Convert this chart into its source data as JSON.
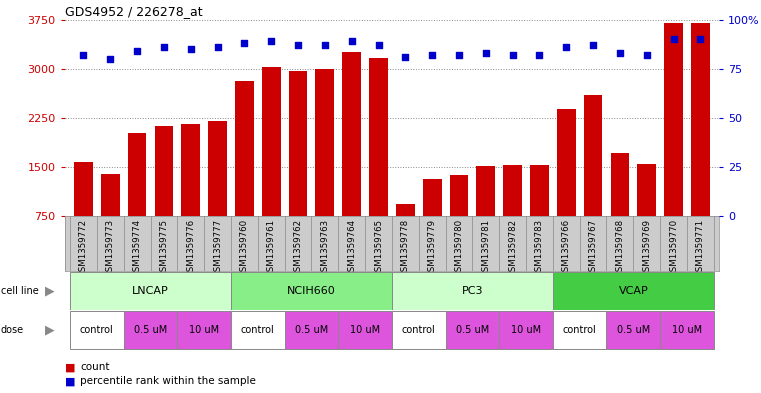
{
  "title": "GDS4952 / 226278_at",
  "samples": [
    "GSM1359772",
    "GSM1359773",
    "GSM1359774",
    "GSM1359775",
    "GSM1359776",
    "GSM1359777",
    "GSM1359760",
    "GSM1359761",
    "GSM1359762",
    "GSM1359763",
    "GSM1359764",
    "GSM1359765",
    "GSM1359778",
    "GSM1359779",
    "GSM1359780",
    "GSM1359781",
    "GSM1359782",
    "GSM1359783",
    "GSM1359766",
    "GSM1359767",
    "GSM1359768",
    "GSM1359769",
    "GSM1359770",
    "GSM1359771"
  ],
  "counts": [
    1570,
    1390,
    2020,
    2120,
    2150,
    2200,
    2820,
    3020,
    2960,
    3000,
    3260,
    3160,
    940,
    1320,
    1380,
    1520,
    1530,
    1530,
    2380,
    2600,
    1720,
    1540,
    3700,
    3700
  ],
  "percentile_ranks": [
    82,
    80,
    84,
    86,
    85,
    86,
    88,
    89,
    87,
    87,
    89,
    87,
    81,
    82,
    82,
    83,
    82,
    82,
    86,
    87,
    83,
    82,
    90,
    90
  ],
  "bar_color": "#cc0000",
  "dot_color": "#0000cc",
  "ylim_left": [
    750,
    3750
  ],
  "yticks_left": [
    750,
    1500,
    2250,
    3000,
    3750
  ],
  "ylim_right": [
    0,
    100
  ],
  "yticks_right": [
    0,
    25,
    50,
    75,
    100
  ],
  "cell_lines": [
    {
      "label": "LNCAP",
      "start": 0,
      "end": 6,
      "color": "#ccffcc"
    },
    {
      "label": "NCIH660",
      "start": 6,
      "end": 12,
      "color": "#88ee88"
    },
    {
      "label": "PC3",
      "start": 12,
      "end": 18,
      "color": "#ccffcc"
    },
    {
      "label": "VCAP",
      "start": 18,
      "end": 24,
      "color": "#44cc44"
    }
  ],
  "cell_line_bg": "#dddddd",
  "dose_groups": [
    {
      "label": "control",
      "start": 0,
      "end": 2,
      "color": "#ffffff"
    },
    {
      "label": "0.5 uM",
      "start": 2,
      "end": 4,
      "color": "#dd55dd"
    },
    {
      "label": "10 uM",
      "start": 4,
      "end": 6,
      "color": "#dd55dd"
    },
    {
      "label": "control",
      "start": 6,
      "end": 8,
      "color": "#ffffff"
    },
    {
      "label": "0.5 uM",
      "start": 8,
      "end": 10,
      "color": "#dd55dd"
    },
    {
      "label": "10 uM",
      "start": 10,
      "end": 12,
      "color": "#dd55dd"
    },
    {
      "label": "control",
      "start": 12,
      "end": 14,
      "color": "#ffffff"
    },
    {
      "label": "0.5 uM",
      "start": 14,
      "end": 16,
      "color": "#dd55dd"
    },
    {
      "label": "10 uM",
      "start": 16,
      "end": 18,
      "color": "#dd55dd"
    },
    {
      "label": "control",
      "start": 18,
      "end": 20,
      "color": "#ffffff"
    },
    {
      "label": "0.5 uM",
      "start": 20,
      "end": 22,
      "color": "#dd55dd"
    },
    {
      "label": "10 uM",
      "start": 22,
      "end": 24,
      "color": "#dd55dd"
    }
  ],
  "dose_bg": "#ffaaff",
  "bg_color": "#ffffff",
  "grid_color": "#888888",
  "tick_color_left": "#cc0000",
  "tick_color_right": "#0000cc",
  "label_area_color": "#cccccc"
}
